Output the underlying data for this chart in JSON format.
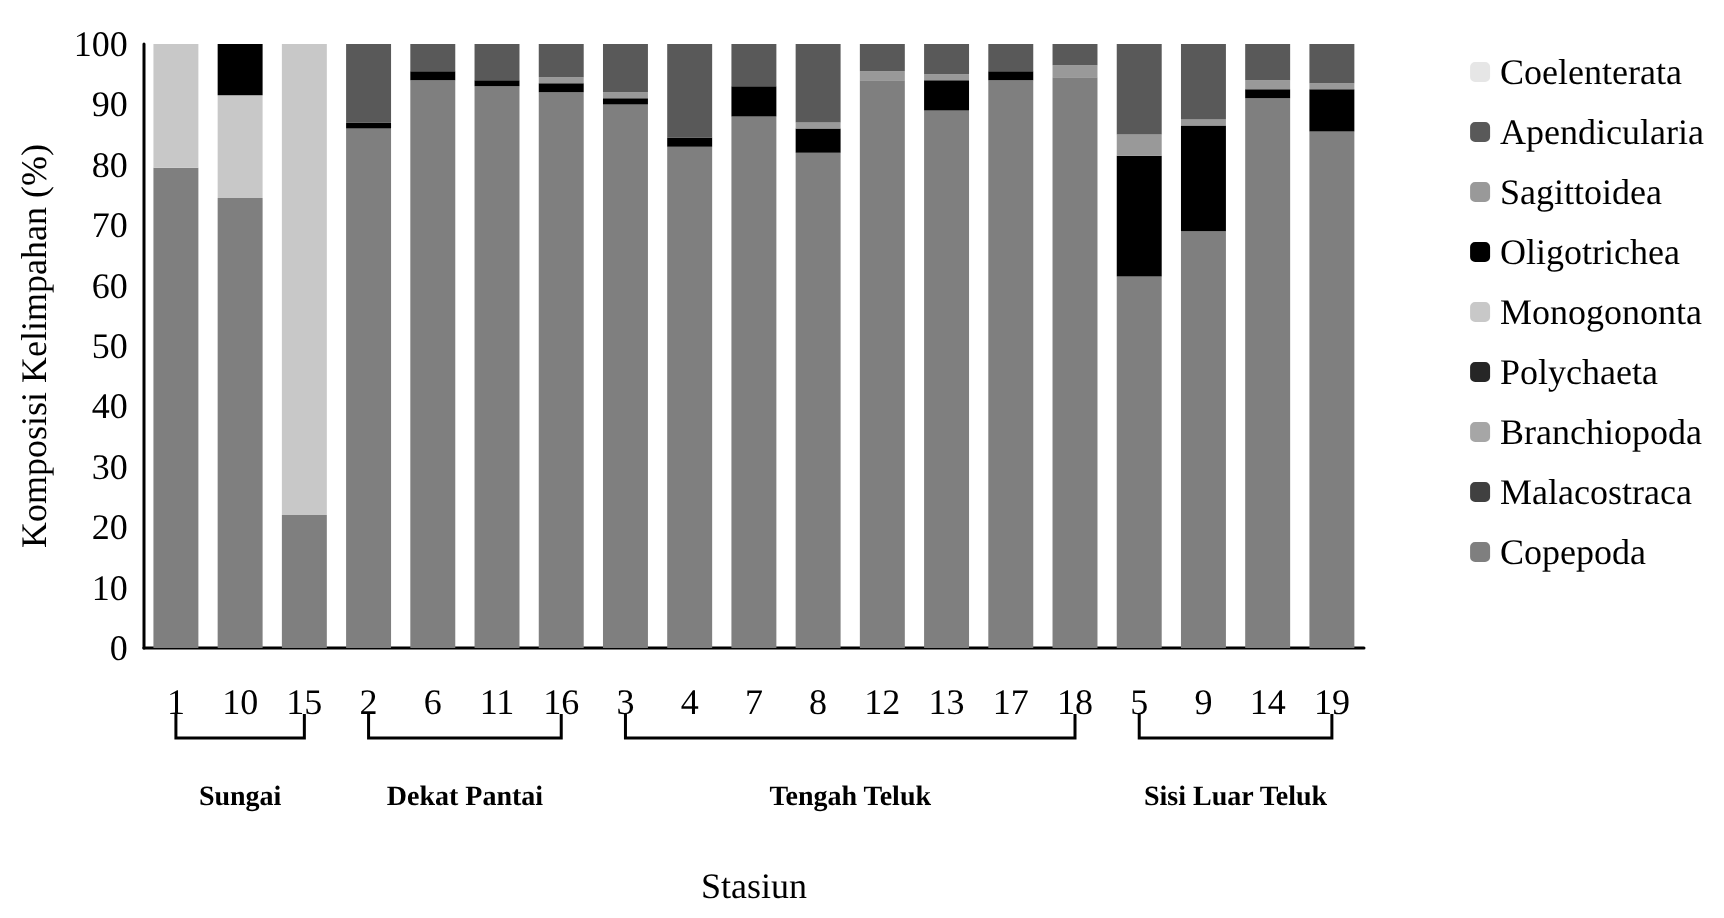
{
  "chart_data": {
    "type": "bar",
    "stacked": true,
    "xlabel": "Stasiun",
    "ylabel": "Komposisi Kelimpahan (%)",
    "categories": [
      "1",
      "10",
      "15",
      "2",
      "6",
      "11",
      "16",
      "3",
      "4",
      "7",
      "8",
      "12",
      "13",
      "17",
      "18",
      "5",
      "9",
      "14",
      "19"
    ],
    "ylim": [
      0,
      100
    ],
    "yticks": [
      0,
      10,
      20,
      30,
      40,
      50,
      60,
      70,
      80,
      90,
      100
    ],
    "grid": false,
    "legend": "right",
    "annotations": [
      "Sungai",
      "Dekat Pantai",
      "Tengah Teluk",
      "Sisi Luar Teluk"
    ],
    "series": [
      {
        "name": "Copepoda",
        "color": "#7f7f7f",
        "values": [
          79.5,
          74.5,
          22,
          86,
          94,
          93,
          92,
          90,
          83,
          88,
          82,
          94,
          89,
          94,
          94.5,
          61.5,
          69,
          91,
          85.5
        ]
      },
      {
        "name": "Malacostraca",
        "color": "#404040",
        "values": [
          0,
          0,
          0,
          0,
          0,
          0,
          0,
          0,
          0,
          0,
          0,
          0,
          0,
          0,
          0,
          0,
          0,
          0,
          0
        ]
      },
      {
        "name": "Branchiopoda",
        "color": "#a6a6a6",
        "values": [
          0,
          0,
          0,
          0,
          0,
          0,
          0,
          0,
          0,
          0,
          0,
          0,
          0,
          0,
          0,
          0,
          0,
          0,
          0
        ]
      },
      {
        "name": "Polychaeta",
        "color": "#262626",
        "values": [
          0,
          0,
          0,
          0,
          0,
          0,
          0,
          0,
          0,
          0,
          0,
          0,
          0,
          0,
          0,
          0,
          0,
          0,
          0
        ]
      },
      {
        "name": "Monogononta",
        "color": "#c8c8c8",
        "values": [
          20.5,
          17,
          78,
          0,
          0,
          0,
          0,
          0,
          0,
          0,
          0,
          0,
          0,
          0,
          0,
          0,
          0,
          0,
          0
        ]
      },
      {
        "name": "Oligotrichea",
        "color": "#000000",
        "values": [
          0,
          8.5,
          0,
          1,
          1.5,
          1,
          1.5,
          1,
          1.5,
          5,
          4,
          0,
          5,
          1.5,
          0,
          20,
          17.5,
          1.5,
          7
        ]
      },
      {
        "name": "Sagittoidea",
        "color": "#999999",
        "values": [
          0,
          0,
          0,
          0,
          0,
          0,
          1,
          1,
          0,
          0,
          1,
          1.5,
          1,
          0,
          2,
          3.5,
          1,
          1.5,
          1
        ]
      },
      {
        "name": "Apendicularia",
        "color": "#595959",
        "values": [
          0,
          0,
          0,
          13,
          4.5,
          6,
          5.5,
          8,
          15.5,
          7,
          13,
          4.5,
          5,
          4.5,
          3.5,
          15,
          12.5,
          6,
          6.5
        ]
      },
      {
        "name": "Coelenterata",
        "color": "#e6e6e6",
        "values": [
          0,
          0,
          0,
          0,
          0,
          0,
          0,
          0,
          0,
          0,
          0,
          0,
          0,
          0,
          0,
          0,
          0,
          0,
          0
        ]
      }
    ]
  }
}
